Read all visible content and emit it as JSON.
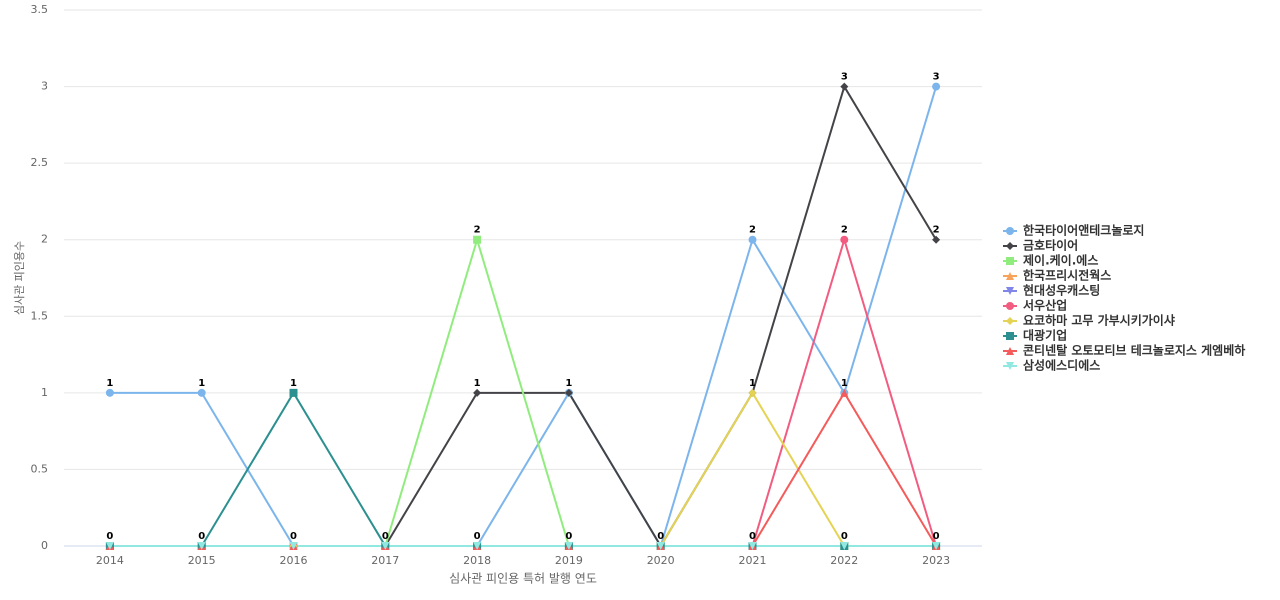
{
  "chart_data": {
    "type": "line",
    "y_label": "심사관 피인용수",
    "x_label": "심사관 피인용 특허 발행 연도",
    "categories": [
      "2014",
      "2015",
      "2016",
      "2017",
      "2018",
      "2019",
      "2020",
      "2021",
      "2022",
      "2023"
    ],
    "ylim": [
      0,
      3.5
    ],
    "yticks": [
      0,
      0.5,
      1,
      1.5,
      2,
      2.5,
      3,
      3.5
    ],
    "grid": true,
    "legend": "right",
    "series": [
      {
        "name": "한국타이어앤테크놀로지",
        "color": "#7cb5ec",
        "marker": "circle",
        "values": [
          1,
          1,
          0,
          0,
          0,
          1,
          0,
          2,
          1,
          3
        ]
      },
      {
        "name": "금호타이어",
        "color": "#434348",
        "marker": "diamond",
        "values": [
          0,
          0,
          0,
          0,
          1,
          1,
          0,
          1,
          3,
          2
        ]
      },
      {
        "name": "제이.케이.에스",
        "color": "#90ed7d",
        "marker": "square",
        "values": [
          0,
          0,
          0,
          0,
          2,
          0,
          0,
          0,
          0,
          0
        ]
      },
      {
        "name": "한국프리시전웍스",
        "color": "#f7a35c",
        "marker": "triangle",
        "values": [
          0,
          0,
          0,
          0,
          0,
          0,
          0,
          0,
          0,
          0
        ]
      },
      {
        "name": "현대성우캐스팅",
        "color": "#8085e9",
        "marker": "triangle-down",
        "values": [
          0,
          0,
          0,
          0,
          0,
          0,
          0,
          0,
          0,
          0
        ]
      },
      {
        "name": "서우산업",
        "color": "#f15c80",
        "marker": "circle",
        "values": [
          0,
          0,
          0,
          0,
          0,
          0,
          0,
          0,
          2,
          0
        ]
      },
      {
        "name": "요코하마 고무 가부시키가이샤",
        "color": "#e4d354",
        "marker": "diamond",
        "values": [
          0,
          0,
          0,
          0,
          0,
          0,
          0,
          1,
          0,
          0
        ]
      },
      {
        "name": "대광기업",
        "color": "#2b908f",
        "marker": "square",
        "values": [
          0,
          0,
          1,
          0,
          0,
          0,
          0,
          0,
          0,
          0
        ]
      },
      {
        "name": "콘티넨탈 오토모티브 테크놀로지스 게엠베하",
        "color": "#f45b5b",
        "marker": "triangle",
        "values": [
          0,
          0,
          0,
          0,
          0,
          0,
          0,
          0,
          1,
          0
        ]
      },
      {
        "name": "삼성에스디에스",
        "color": "#91e8e1",
        "marker": "triangle-down",
        "values": [
          0,
          0,
          0,
          0,
          0,
          0,
          0,
          0,
          0,
          0
        ]
      }
    ]
  }
}
